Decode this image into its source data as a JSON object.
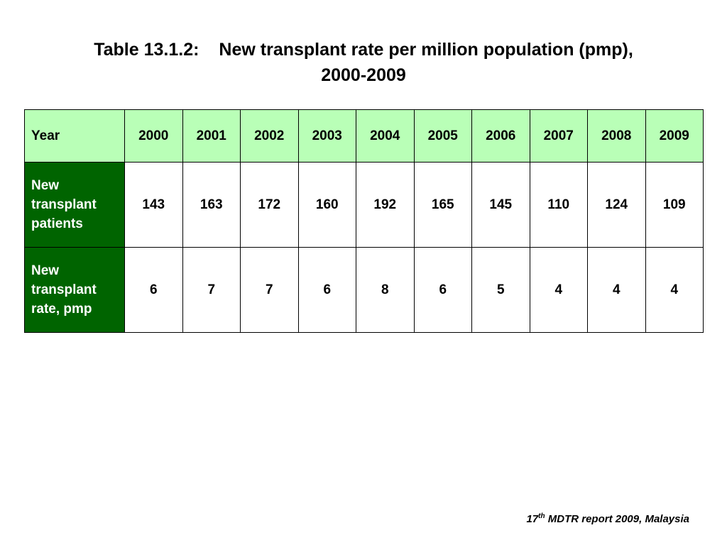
{
  "title": {
    "label": "Table 13.1.2:",
    "text": "New transplant rate per million population (pmp),",
    "years": "2000-2009"
  },
  "table": {
    "header_label": "Year",
    "years": [
      "2000",
      "2001",
      "2002",
      "2003",
      "2004",
      "2005",
      "2006",
      "2007",
      "2008",
      "2009"
    ],
    "rows": [
      {
        "label": "New transplant patients",
        "values": [
          "143",
          "163",
          "172",
          "160",
          "192",
          "165",
          "145",
          "110",
          "124",
          "109"
        ]
      },
      {
        "label": "New transplant rate, pmp",
        "values": [
          "6",
          "7",
          "7",
          "6",
          "8",
          "6",
          "5",
          "4",
          "4",
          "4"
        ]
      }
    ]
  },
  "footer": {
    "prefix": "17",
    "sup": "th",
    "suffix": " MDTR report 2009, Malaysia"
  }
}
